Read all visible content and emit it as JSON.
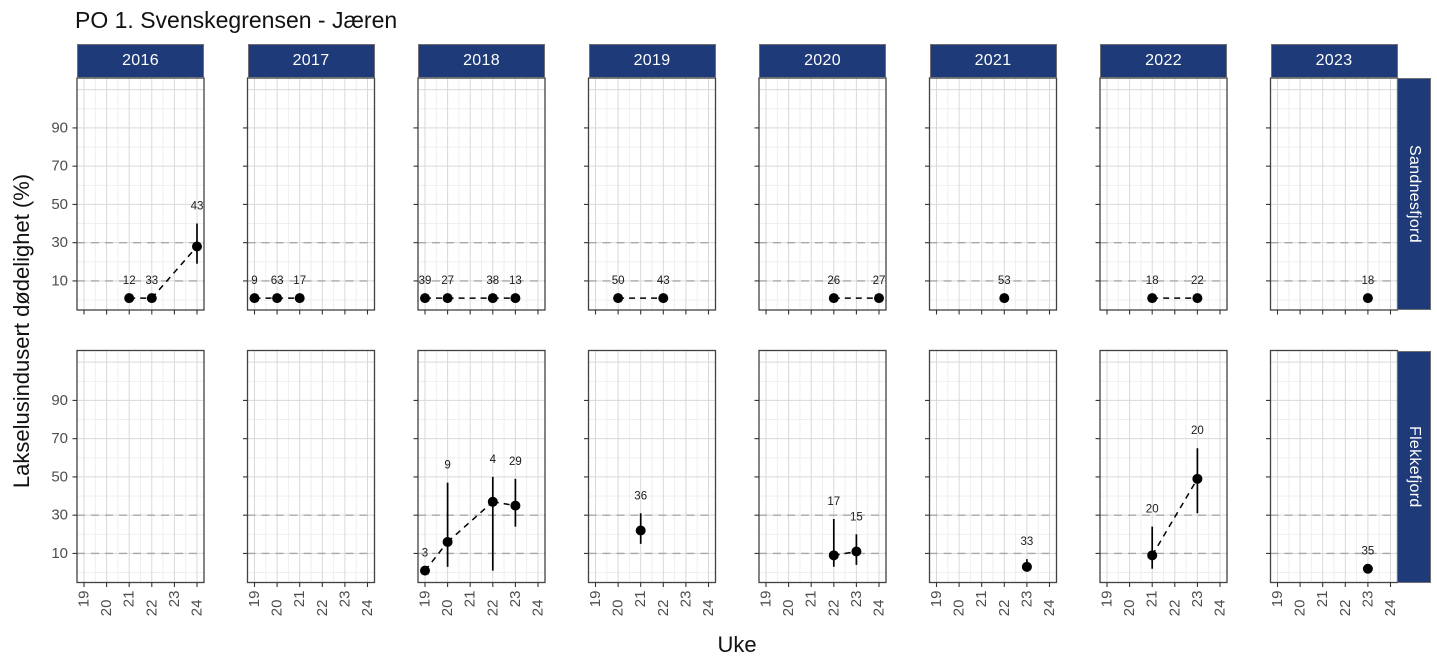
{
  "title": "PO 1. Svenskegrensen - Jæren",
  "colors": {
    "strip_bg": "#1e3a78",
    "strip_text": "#ffffff",
    "point": "#000000",
    "line": "#000000",
    "errorbar": "#000000",
    "point_label": "#1a1a1a",
    "axis_text": "#4d4d4d",
    "panel_border": "#424242",
    "grid_major": "#d9d9d9",
    "grid_minor": "#ededed",
    "reference_line": "#a8a8a8",
    "tick_mark": "#333333",
    "panel_bg": "#ffffff"
  },
  "chart_data": {
    "type": "scatter",
    "title": "PO 1. Svenskegrensen - Jæren",
    "xlabel": "Uke",
    "ylabel": "Lakselusindusert dødelighet (%)",
    "facet_columns": [
      "2016",
      "2017",
      "2018",
      "2019",
      "2020",
      "2021",
      "2022",
      "2023"
    ],
    "facet_rows": [
      "Sandnesfjord",
      "Flekkefjord"
    ],
    "x_ticks": [
      19,
      20,
      21,
      22,
      23,
      24
    ],
    "y_ticks": [
      10,
      30,
      50,
      70,
      90
    ],
    "reference_lines_dashed_y": [
      10,
      30
    ],
    "grid": true,
    "legend": "none",
    "x_range_drawn": [
      18.69,
      24.31
    ],
    "y_range_drawn": [
      -5.2,
      116.1
    ],
    "line_style": "dashed",
    "facets": [
      {
        "region": "Sandnesfjord",
        "year": "2016",
        "points": [
          {
            "week": 21,
            "value": 1,
            "label": "12"
          },
          {
            "week": 22,
            "value": 1,
            "label": "33"
          },
          {
            "week": 24,
            "value": 28,
            "lo": 19,
            "hi": 40,
            "label": "43"
          }
        ]
      },
      {
        "region": "Sandnesfjord",
        "year": "2017",
        "points": [
          {
            "week": 19,
            "value": 1,
            "label": "9"
          },
          {
            "week": 20,
            "value": 1,
            "label": "63"
          },
          {
            "week": 21,
            "value": 1,
            "label": "17"
          }
        ]
      },
      {
        "region": "Sandnesfjord",
        "year": "2018",
        "points": [
          {
            "week": 19,
            "value": 1,
            "label": "39"
          },
          {
            "week": 20,
            "value": 1,
            "label": "27"
          },
          {
            "week": 22,
            "value": 1,
            "label": "38"
          },
          {
            "week": 23,
            "value": 1,
            "label": "13"
          }
        ]
      },
      {
        "region": "Sandnesfjord",
        "year": "2019",
        "points": [
          {
            "week": 20,
            "value": 1,
            "label": "50"
          },
          {
            "week": 22,
            "value": 1,
            "label": "43"
          }
        ]
      },
      {
        "region": "Sandnesfjord",
        "year": "2020",
        "points": [
          {
            "week": 22,
            "value": 1,
            "label": "26"
          },
          {
            "week": 24,
            "value": 1,
            "label": "27"
          }
        ]
      },
      {
        "region": "Sandnesfjord",
        "year": "2021",
        "points": [
          {
            "week": 22,
            "value": 1,
            "label": "53"
          }
        ]
      },
      {
        "region": "Sandnesfjord",
        "year": "2022",
        "points": [
          {
            "week": 21,
            "value": 1,
            "label": "18"
          },
          {
            "week": 23,
            "value": 1,
            "label": "22"
          }
        ]
      },
      {
        "region": "Sandnesfjord",
        "year": "2023",
        "points": [
          {
            "week": 23,
            "value": 1,
            "label": "18"
          }
        ]
      },
      {
        "region": "Flekkefjord",
        "year": "2016",
        "points": []
      },
      {
        "region": "Flekkefjord",
        "year": "2017",
        "points": []
      },
      {
        "region": "Flekkefjord",
        "year": "2018",
        "points": [
          {
            "week": 19,
            "value": 1,
            "label": "3"
          },
          {
            "week": 20,
            "value": 16,
            "lo": 3,
            "hi": 47,
            "label": "9"
          },
          {
            "week": 22,
            "value": 37,
            "lo": 1,
            "hi": 50,
            "label": "4"
          },
          {
            "week": 23,
            "value": 35,
            "lo": 24,
            "hi": 49,
            "label": "29"
          }
        ]
      },
      {
        "region": "Flekkefjord",
        "year": "2019",
        "points": [
          {
            "week": 21,
            "value": 22,
            "lo": 15,
            "hi": 31,
            "label": "36"
          }
        ]
      },
      {
        "region": "Flekkefjord",
        "year": "2020",
        "points": [
          {
            "week": 22,
            "value": 9,
            "lo": 3,
            "hi": 28,
            "label": "17"
          },
          {
            "week": 23,
            "value": 11,
            "lo": 4,
            "hi": 20,
            "label": "15"
          }
        ]
      },
      {
        "region": "Flekkefjord",
        "year": "2021",
        "points": [
          {
            "week": 23,
            "value": 3,
            "lo": 1,
            "hi": 7,
            "label": "33"
          }
        ]
      },
      {
        "region": "Flekkefjord",
        "year": "2022",
        "points": [
          {
            "week": 21,
            "value": 9,
            "lo": 2,
            "hi": 24,
            "label": "20"
          },
          {
            "week": 23,
            "value": 49,
            "lo": 31,
            "hi": 65,
            "label": "20"
          }
        ]
      },
      {
        "region": "Flekkefjord",
        "year": "2023",
        "points": [
          {
            "week": 23,
            "value": 2,
            "label": "35"
          }
        ]
      }
    ]
  }
}
